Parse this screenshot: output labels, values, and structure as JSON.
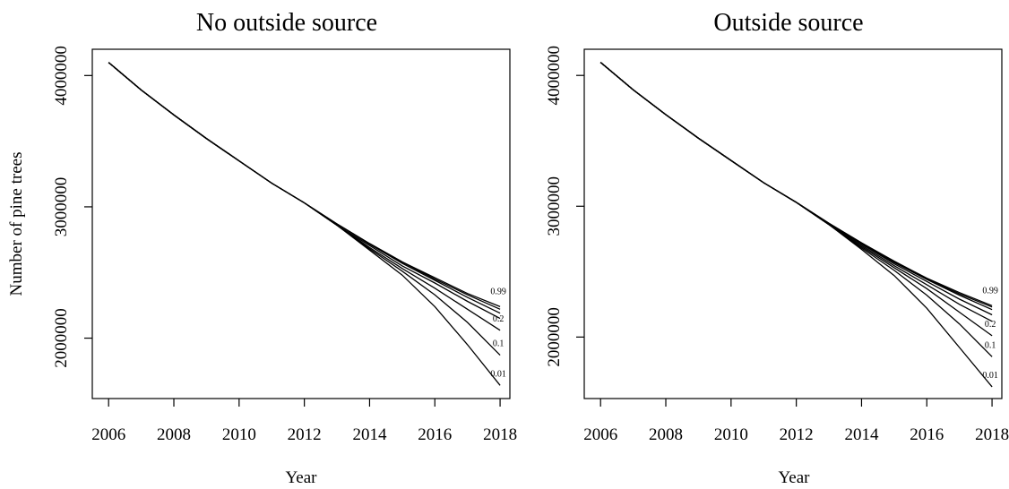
{
  "figure": {
    "ylabel_shared": "Number of pine trees"
  },
  "chart_data": [
    {
      "type": "line",
      "title": "No outside source",
      "xlabel": "Year",
      "ylabel": "Number of pine trees",
      "xlim": [
        2005.5,
        2018.3
      ],
      "ylim": [
        1540000,
        4200000
      ],
      "xticks": [
        2006,
        2008,
        2010,
        2012,
        2014,
        2016,
        2018
      ],
      "yticks": [
        2000000,
        3000000,
        4000000
      ],
      "ytick_labels": [
        "2000000",
        "3000000",
        "4000000"
      ],
      "grid": false,
      "x": [
        2006,
        2007,
        2008,
        2009,
        2010,
        2011,
        2012,
        2013,
        2014,
        2015,
        2016,
        2017,
        2018
      ],
      "series": [
        {
          "name": "0.99",
          "values": [
            4100000,
            3890000,
            3700000,
            3520000,
            3350000,
            3180000,
            3030000,
            2870000,
            2720000,
            2580000,
            2460000,
            2340000,
            2240000
          ]
        },
        {
          "values": [
            4100000,
            3890000,
            3700000,
            3520000,
            3350000,
            3180000,
            3030000,
            2870000,
            2720000,
            2580000,
            2450000,
            2330000,
            2220000
          ]
        },
        {
          "values": [
            4100000,
            3890000,
            3700000,
            3520000,
            3350000,
            3180000,
            3030000,
            2870000,
            2715000,
            2570000,
            2440000,
            2310000,
            2190000
          ]
        },
        {
          "values": [
            4100000,
            3890000,
            3700000,
            3520000,
            3350000,
            3180000,
            3030000,
            2860000,
            2705000,
            2550000,
            2420000,
            2280000,
            2150000
          ]
        },
        {
          "name": "0.2",
          "values": [
            4100000,
            3890000,
            3700000,
            3520000,
            3350000,
            3180000,
            3030000,
            2860000,
            2690000,
            2530000,
            2380000,
            2220000,
            2060000
          ]
        },
        {
          "name": "0.1",
          "values": [
            4100000,
            3890000,
            3700000,
            3520000,
            3350000,
            3180000,
            3030000,
            2860000,
            2680000,
            2510000,
            2330000,
            2120000,
            1870000
          ]
        },
        {
          "name": "0.01",
          "values": [
            4100000,
            3890000,
            3700000,
            3520000,
            3350000,
            3180000,
            3030000,
            2860000,
            2670000,
            2480000,
            2240000,
            1950000,
            1640000
          ]
        }
      ]
    },
    {
      "type": "line",
      "title": "Outside source",
      "xlabel": "Year",
      "ylabel": "",
      "xlim": [
        2005.5,
        2018.3
      ],
      "ylim": [
        1530000,
        4200000
      ],
      "xticks": [
        2006,
        2008,
        2010,
        2012,
        2014,
        2016,
        2018
      ],
      "yticks": [
        2000000,
        3000000,
        4000000
      ],
      "ytick_labels": [
        "2000000",
        "3000000",
        "4000000"
      ],
      "grid": false,
      "x": [
        2006,
        2007,
        2008,
        2009,
        2010,
        2011,
        2012,
        2013,
        2014,
        2015,
        2016,
        2017,
        2018
      ],
      "series": [
        {
          "name": "0.99",
          "values": [
            4100000,
            3890000,
            3700000,
            3520000,
            3350000,
            3180000,
            3030000,
            2870000,
            2720000,
            2580000,
            2450000,
            2340000,
            2240000
          ]
        },
        {
          "values": [
            4100000,
            3890000,
            3700000,
            3520000,
            3350000,
            3180000,
            3030000,
            2870000,
            2720000,
            2575000,
            2445000,
            2330000,
            2230000
          ]
        },
        {
          "values": [
            4100000,
            3890000,
            3700000,
            3520000,
            3350000,
            3180000,
            3030000,
            2870000,
            2715000,
            2570000,
            2440000,
            2320000,
            2210000
          ]
        },
        {
          "values": [
            4100000,
            3890000,
            3700000,
            3520000,
            3350000,
            3180000,
            3030000,
            2865000,
            2710000,
            2560000,
            2425000,
            2290000,
            2170000
          ]
        },
        {
          "values": [
            4100000,
            3890000,
            3700000,
            3520000,
            3350000,
            3180000,
            3030000,
            2860000,
            2700000,
            2545000,
            2400000,
            2250000,
            2120000
          ]
        },
        {
          "name": "0.2",
          "values": [
            4100000,
            3890000,
            3700000,
            3520000,
            3350000,
            3180000,
            3030000,
            2860000,
            2690000,
            2530000,
            2370000,
            2190000,
            2010000
          ]
        },
        {
          "name": "0.1",
          "values": [
            4100000,
            3890000,
            3700000,
            3520000,
            3350000,
            3180000,
            3030000,
            2860000,
            2680000,
            2510000,
            2320000,
            2100000,
            1850000
          ]
        },
        {
          "name": "0.01",
          "values": [
            4100000,
            3890000,
            3700000,
            3520000,
            3350000,
            3180000,
            3030000,
            2860000,
            2670000,
            2470000,
            2220000,
            1920000,
            1620000
          ]
        }
      ]
    }
  ]
}
